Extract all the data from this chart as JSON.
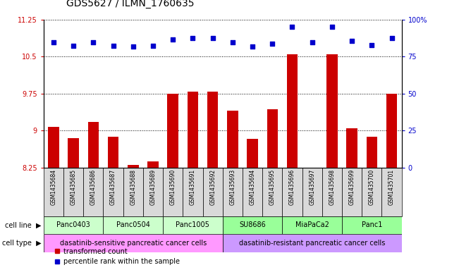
{
  "title": "GDS5627 / ILMN_1760635",
  "samples": [
    "GSM1435684",
    "GSM1435685",
    "GSM1435686",
    "GSM1435687",
    "GSM1435688",
    "GSM1435689",
    "GSM1435690",
    "GSM1435691",
    "GSM1435692",
    "GSM1435693",
    "GSM1435694",
    "GSM1435695",
    "GSM1435696",
    "GSM1435697",
    "GSM1435698",
    "GSM1435699",
    "GSM1435700",
    "GSM1435701"
  ],
  "bar_values": [
    9.07,
    8.84,
    9.18,
    8.88,
    8.3,
    8.37,
    9.75,
    9.79,
    9.79,
    9.4,
    8.83,
    9.43,
    10.55,
    8.25,
    10.54,
    9.05,
    8.88,
    9.75
  ],
  "dot_values": [
    10.78,
    10.72,
    10.78,
    10.72,
    10.7,
    10.72,
    10.84,
    10.87,
    10.87,
    10.78,
    10.7,
    10.76,
    11.1,
    10.78,
    11.1,
    10.82,
    10.73,
    10.87
  ],
  "ylim_left": [
    8.25,
    11.25
  ],
  "ylim_right": [
    0,
    100
  ],
  "yticks_left": [
    8.25,
    9.0,
    9.75,
    10.5,
    11.25
  ],
  "ytick_labels_left": [
    "8.25",
    "9",
    "9.75",
    "10.5",
    "11.25"
  ],
  "yticks_right": [
    0,
    25,
    50,
    75,
    100
  ],
  "ytick_labels_right": [
    "0",
    "25",
    "50",
    "75",
    "100%"
  ],
  "bar_color": "#cc0000",
  "dot_color": "#0000cc",
  "bar_width": 0.55,
  "cell_lines": [
    {
      "label": "Panc0403",
      "start": 0,
      "end": 2,
      "color": "#ccffcc"
    },
    {
      "label": "Panc0504",
      "start": 3,
      "end": 5,
      "color": "#ccffcc"
    },
    {
      "label": "Panc1005",
      "start": 6,
      "end": 8,
      "color": "#ccffcc"
    },
    {
      "label": "SU8686",
      "start": 9,
      "end": 11,
      "color": "#99ff99"
    },
    {
      "label": "MiaPaCa2",
      "start": 12,
      "end": 14,
      "color": "#99ff99"
    },
    {
      "label": "Panc1",
      "start": 15,
      "end": 17,
      "color": "#99ff99"
    }
  ],
  "cell_types": [
    {
      "label": "dasatinib-sensitive pancreatic cancer cells",
      "start": 0,
      "end": 8,
      "color": "#ff99ff"
    },
    {
      "label": "dasatinib-resistant pancreatic cancer cells",
      "start": 9,
      "end": 17,
      "color": "#cc99ff"
    }
  ],
  "grid_color": "black",
  "grid_style": "dotted",
  "bg_color": "white",
  "sample_row_color": "#d9d9d9",
  "label_fontsize": 7,
  "title_fontsize": 10
}
